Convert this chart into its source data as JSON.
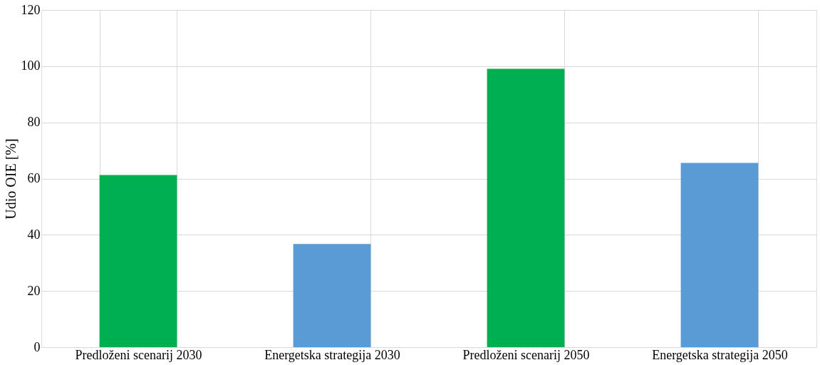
{
  "chart_data": {
    "type": "bar",
    "ylabel": "Udio OIE [%]",
    "categories": [
      "Predloženi scenarij 2030",
      "Energetska strategija 2030",
      "Predloženi scenarij 2050",
      "Energetska strategija 2050"
    ],
    "values": [
      61.3,
      36.7,
      99.1,
      65.6
    ],
    "colors": [
      "#00b050",
      "#5b9bd5",
      "#00b050",
      "#5b9bd5"
    ],
    "ylim": [
      0,
      120
    ],
    "yticks": [
      0,
      20,
      40,
      60,
      80,
      100,
      120
    ],
    "grid": true
  }
}
